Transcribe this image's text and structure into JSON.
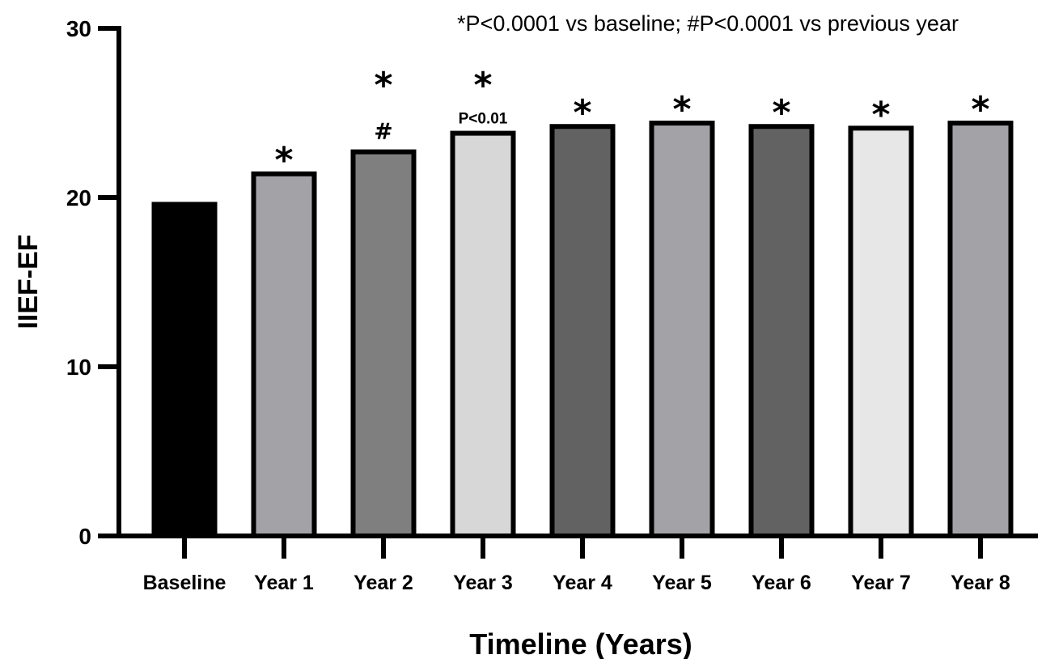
{
  "chart_data": {
    "type": "bar",
    "title": "",
    "note": "*P<0.0001 vs baseline; #P<0.0001 vs previous year",
    "xlabel": "Timeline (Years)",
    "ylabel": "IIEF-EF",
    "ylim": [
      0,
      30
    ],
    "yticks": [
      0,
      10,
      20,
      30
    ],
    "grid": false,
    "categories": [
      "Baseline",
      "Year 1",
      "Year 2",
      "Year 3",
      "Year 4",
      "Year 5",
      "Year 6",
      "Year 7",
      "Year 8"
    ],
    "values": [
      19.6,
      21.4,
      22.7,
      23.8,
      24.2,
      24.4,
      24.2,
      24.1,
      24.4
    ],
    "bar_colors": [
      "#000000",
      "#a3a2a6",
      "#7f7f7f",
      "#d7d7d7",
      "#626262",
      "#a3a2a6",
      "#626262",
      "#e7e7e7",
      "#a3a2a6"
    ],
    "annotations": [
      {
        "category": "Year 1",
        "marks": [
          "*"
        ]
      },
      {
        "category": "Year 2",
        "marks": [
          "*",
          "#"
        ]
      },
      {
        "category": "Year 3",
        "marks": [
          "*",
          "P<0.01"
        ]
      },
      {
        "category": "Year 4",
        "marks": [
          "*"
        ]
      },
      {
        "category": "Year 5",
        "marks": [
          "*"
        ]
      },
      {
        "category": "Year 6",
        "marks": [
          "*"
        ]
      },
      {
        "category": "Year 7",
        "marks": [
          "*"
        ]
      },
      {
        "category": "Year 8",
        "marks": [
          "*"
        ]
      }
    ]
  }
}
